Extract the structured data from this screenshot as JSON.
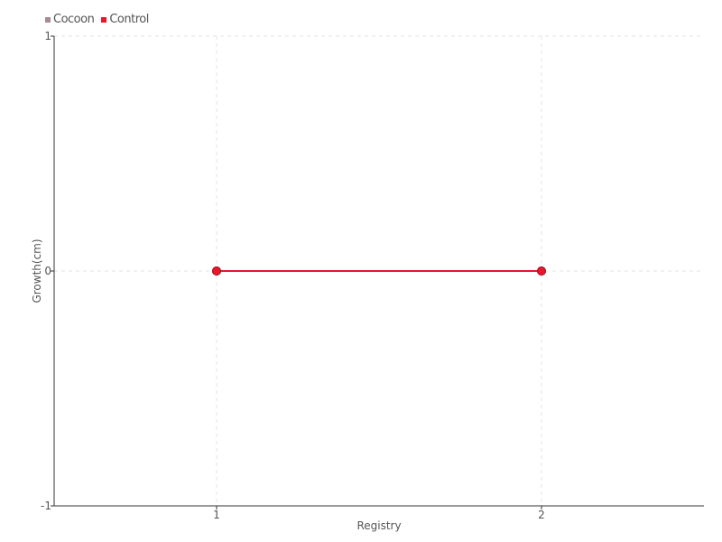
{
  "chart_data": {
    "type": "line",
    "title": "",
    "xlabel": "Registry",
    "ylabel": "Growth(cm)",
    "x": [
      1,
      2
    ],
    "xticks": [
      "1",
      "2"
    ],
    "xlim": [
      0.5,
      2.5
    ],
    "yticks": [
      "-1",
      "0",
      "1"
    ],
    "ylim": [
      -1,
      1
    ],
    "grid": true,
    "legend_position": "top-left",
    "series": [
      {
        "name": "Cocoon",
        "values": [
          0,
          0
        ],
        "color": "#a88a94"
      },
      {
        "name": "Control",
        "values": [
          0,
          0
        ],
        "color": "#e8172c"
      }
    ]
  }
}
